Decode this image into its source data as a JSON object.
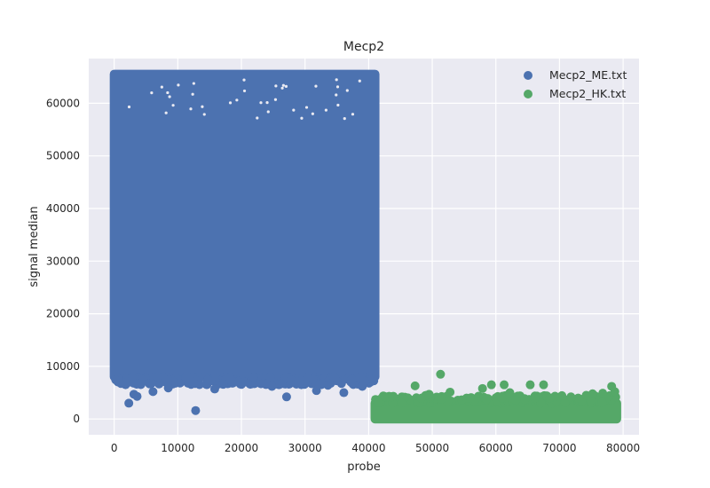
{
  "chart_data": {
    "type": "scatter",
    "title": "Mecp2",
    "xlabel": "probe",
    "ylabel": "signal median",
    "xlim": [
      -4000,
      82500
    ],
    "ylim": [
      -3000,
      68500
    ],
    "xticks": [
      0,
      10000,
      20000,
      30000,
      40000,
      50000,
      60000,
      70000,
      80000
    ],
    "yticks": [
      0,
      10000,
      20000,
      30000,
      40000,
      50000,
      60000
    ],
    "grid": true,
    "legend_position": "top-right",
    "series": [
      {
        "name": "Mecp2_ME.txt",
        "color": "#4c72b0",
        "x_range": [
          0,
          41000
        ],
        "y_range_dense": [
          8000,
          65535
        ],
        "outliers": [
          {
            "x": 2300,
            "y": 3000
          },
          {
            "x": 3100,
            "y": 4700
          },
          {
            "x": 3600,
            "y": 4300
          },
          {
            "x": 4200,
            "y": 6700
          },
          {
            "x": 6100,
            "y": 5200
          },
          {
            "x": 8500,
            "y": 5900
          },
          {
            "x": 12800,
            "y": 1600
          },
          {
            "x": 15800,
            "y": 5700
          },
          {
            "x": 20400,
            "y": 7000
          },
          {
            "x": 24800,
            "y": 6200
          },
          {
            "x": 26300,
            "y": 6700
          },
          {
            "x": 27100,
            "y": 4200
          },
          {
            "x": 31800,
            "y": 5400
          },
          {
            "x": 33600,
            "y": 6400
          },
          {
            "x": 36100,
            "y": 5000
          },
          {
            "x": 39000,
            "y": 6200
          }
        ]
      },
      {
        "name": "Mecp2_HK.txt",
        "color": "#55a868",
        "x_range": [
          41000,
          79000
        ],
        "y_range_dense": [
          0,
          3000
        ],
        "outliers": [
          {
            "x": 42500,
            "y": 4300
          },
          {
            "x": 47300,
            "y": 6300
          },
          {
            "x": 49500,
            "y": 4700
          },
          {
            "x": 51300,
            "y": 8500
          },
          {
            "x": 52800,
            "y": 5100
          },
          {
            "x": 57900,
            "y": 5800
          },
          {
            "x": 59300,
            "y": 6500
          },
          {
            "x": 61300,
            "y": 6500
          },
          {
            "x": 62200,
            "y": 5000
          },
          {
            "x": 65400,
            "y": 6500
          },
          {
            "x": 67500,
            "y": 6500
          },
          {
            "x": 71800,
            "y": 4200
          },
          {
            "x": 74200,
            "y": 4500
          },
          {
            "x": 75200,
            "y": 4800
          },
          {
            "x": 76800,
            "y": 4900
          },
          {
            "x": 78200,
            "y": 6200
          },
          {
            "x": 78700,
            "y": 5200
          }
        ]
      }
    ]
  }
}
